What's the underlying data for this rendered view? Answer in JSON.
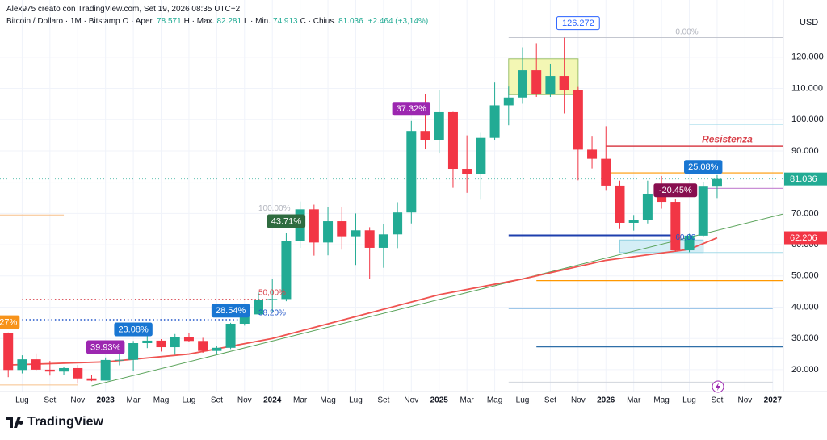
{
  "header": {
    "credit": "Alex975 creato con TradingView.com, Set 19, 2026 08:35 UTC+2",
    "symbol": "Bitcoin / Dollaro · 1M · Bitstamp",
    "ohlc": [
      {
        "label": "O · Aper.",
        "value": "78.571"
      },
      {
        "label": "H · Max.",
        "value": "82.281"
      },
      {
        "label": "L · Min.",
        "value": "74.913"
      },
      {
        "label": "C · Chius.",
        "value": "81.036"
      },
      {
        "label": "",
        "value": "+2.464 (+3,14%)"
      }
    ],
    "currency": "USD"
  },
  "footer": {
    "brand": "TradingView"
  },
  "chart_data": {
    "type": "candlestick",
    "up_color": "#22ab94",
    "down_color": "#f23645",
    "grid": true,
    "x": [
      "2022-06",
      "2022-07",
      "2022-08",
      "2022-09",
      "2022-10",
      "2022-11",
      "2022-12",
      "2023-01",
      "2023-02",
      "2023-03",
      "2023-04",
      "2023-05",
      "2023-06",
      "2023-07",
      "2023-08",
      "2023-09",
      "2023-10",
      "2023-11",
      "2023-12",
      "2024-01",
      "2024-02",
      "2024-03",
      "2024-04",
      "2024-05",
      "2024-06",
      "2024-07",
      "2024-08",
      "2024-09",
      "2024-10",
      "2024-11",
      "2024-12",
      "2025-01",
      "2025-02",
      "2025-03",
      "2025-04",
      "2025-05",
      "2025-06",
      "2025-07",
      "2025-08",
      "2025-09",
      "2025-10",
      "2025-11",
      "2025-12",
      "2026-01",
      "2026-02",
      "2026-03",
      "2026-04",
      "2026-05",
      "2026-06",
      "2026-07",
      "2026-08",
      "2026-09"
    ],
    "open": [
      31800,
      19900,
      23300,
      20000,
      19400,
      20500,
      17200,
      16500,
      23100,
      23150,
      28500,
      29300,
      27200,
      30500,
      29200,
      26000,
      27000,
      34700,
      37700,
      42300,
      42600,
      61200,
      71300,
      60700,
      67500,
      62700,
      64600,
      59000,
      63300,
      70300,
      96400,
      93400,
      102400,
      84300,
      82500,
      94200,
      104600,
      107100,
      115800,
      108200,
      114000,
      109500,
      90400,
      87500,
      78900,
      67000,
      68000,
      76300,
      73700,
      58200,
      62900,
      78571
    ],
    "high": [
      31900,
      24600,
      25200,
      22800,
      21000,
      21500,
      18400,
      23900,
      25200,
      29200,
      31000,
      29800,
      31400,
      31800,
      30200,
      27500,
      35000,
      38400,
      44700,
      48900,
      63900,
      73800,
      72800,
      72000,
      72000,
      70000,
      65600,
      66500,
      73600,
      99600,
      108300,
      109400,
      102500,
      95000,
      95800,
      111900,
      110600,
      123200,
      124500,
      117900,
      126272,
      110500,
      94600,
      97900,
      80500,
      69500,
      80500,
      82000,
      74500,
      63500,
      80000,
      82281
    ],
    "low": [
      17600,
      18800,
      19600,
      18100,
      18200,
      15500,
      16300,
      16500,
      21400,
      19600,
      26900,
      25800,
      24800,
      28900,
      25400,
      24900,
      26600,
      34100,
      37600,
      38500,
      41900,
      59000,
      56500,
      56600,
      58400,
      53500,
      49000,
      52600,
      58900,
      66800,
      90500,
      89200,
      78200,
      76600,
      74400,
      93400,
      98200,
      105100,
      107300,
      107300,
      102000,
      80600,
      84400,
      77500,
      65000,
      64500,
      66800,
      71500,
      57800,
      57600,
      62500,
      74913
    ],
    "close": [
      19900,
      23300,
      20000,
      19400,
      20500,
      17200,
      16500,
      23100,
      23150,
      28500,
      29300,
      27200,
      30500,
      29200,
      26000,
      27000,
      34700,
      37700,
      42300,
      42600,
      61200,
      71300,
      60700,
      67500,
      62700,
      64600,
      59000,
      63300,
      70300,
      96400,
      93400,
      102400,
      84300,
      82500,
      94200,
      104600,
      107100,
      115800,
      108200,
      114000,
      109500,
      90400,
      87500,
      78900,
      67000,
      68000,
      76300,
      73700,
      58200,
      62900,
      78571,
      81036
    ],
    "xlim": [
      "2022-05",
      "2027-02"
    ],
    "xticks": [
      {
        "value": "2022-07",
        "label": "Lug"
      },
      {
        "value": "2022-09",
        "label": "Set"
      },
      {
        "value": "2022-11",
        "label": "Nov"
      },
      {
        "value": "2023-01",
        "label": "2023"
      },
      {
        "value": "2023-03",
        "label": "Mar"
      },
      {
        "value": "2023-05",
        "label": "Mag"
      },
      {
        "value": "2023-07",
        "label": "Lug"
      },
      {
        "value": "2023-09",
        "label": "Set"
      },
      {
        "value": "2023-11",
        "label": "Nov"
      },
      {
        "value": "2024-01",
        "label": "2024"
      },
      {
        "value": "2024-03",
        "label": "Mar"
      },
      {
        "value": "2024-05",
        "label": "Mag"
      },
      {
        "value": "2024-07",
        "label": "Lug"
      },
      {
        "value": "2024-09",
        "label": "Set"
      },
      {
        "value": "2024-11",
        "label": "Nov"
      },
      {
        "value": "2025-01",
        "label": "2025"
      },
      {
        "value": "2025-03",
        "label": "Mar"
      },
      {
        "value": "2025-05",
        "label": "Mag"
      },
      {
        "value": "2025-07",
        "label": "Lug"
      },
      {
        "value": "2025-09",
        "label": "Set"
      },
      {
        "value": "2025-11",
        "label": "Nov"
      },
      {
        "value": "2026-01",
        "label": "2026"
      },
      {
        "value": "2026-03",
        "label": "Mar"
      },
      {
        "value": "2026-05",
        "label": "Mag"
      },
      {
        "value": "2026-07",
        "label": "Lug"
      },
      {
        "value": "2026-09",
        "label": "Set"
      },
      {
        "value": "2026-11",
        "label": "Nov"
      },
      {
        "value": "2027-01",
        "label": "2027"
      }
    ],
    "ylim": [
      13000,
      138300
    ],
    "yticks": [
      {
        "value": 20000,
        "label": "20.000"
      },
      {
        "value": 30000,
        "label": "30.000"
      },
      {
        "value": 40000,
        "label": "40.000"
      },
      {
        "value": 50000,
        "label": "50.000"
      },
      {
        "value": 60000,
        "label": "60.000"
      },
      {
        "value": 70000,
        "label": "70.000"
      },
      {
        "value": 80000,
        "label": "80.000"
      },
      {
        "value": 90000,
        "label": "90.000"
      },
      {
        "value": 100000,
        "label": "100.000"
      },
      {
        "value": 110000,
        "label": "110.000"
      },
      {
        "value": 120000,
        "label": "120.000"
      }
    ],
    "moving_average": {
      "color": "#ef5350",
      "x": [
        "2022-06",
        "2023-01",
        "2023-07",
        "2024-01",
        "2024-07",
        "2025-01",
        "2025-07",
        "2026-01",
        "2026-07",
        "2026-09"
      ],
      "values": [
        21500,
        22500,
        25000,
        30000,
        37000,
        44000,
        49000,
        55000,
        58500,
        62206
      ]
    },
    "trendline": {
      "color": "#5aa35a",
      "x": [
        "2022-12",
        "2027-02"
      ],
      "values": [
        14800,
        70100
      ]
    },
    "zones": [
      {
        "from": "2025-06",
        "to": "2025-11",
        "low": 108000,
        "high": 119500,
        "fill": "#f3f7b4",
        "stroke": "#9cc06c"
      },
      {
        "from": "2026-02",
        "to": "2026-08",
        "low": 57500,
        "high": 61500,
        "fill": "#d4eef6",
        "stroke": "#8fd0e0"
      }
    ],
    "levels": [
      {
        "value": 126272,
        "color": "#c3c6cf",
        "from": "2025-06",
        "to": "2027-02",
        "width": 1,
        "dash": ""
      },
      {
        "value": 98500,
        "color": "#8fd3e6",
        "from": "2026-07",
        "to": "2027-02",
        "width": 1,
        "dash": ""
      },
      {
        "value": 91500,
        "color": "#d9424b",
        "from": "2026-01",
        "to": "2027-02",
        "width": 1.5,
        "dash": ""
      },
      {
        "value": 83000,
        "color": "#ff9800",
        "from": "2026-01",
        "to": "2027-02",
        "width": 1.2,
        "dash": ""
      },
      {
        "value": 78000,
        "color": "#c98fd6",
        "from": "2026-08",
        "to": "2027-02",
        "width": 1.2,
        "dash": ""
      },
      {
        "value": 63000,
        "color": "#1e3fae",
        "from": "2025-06",
        "to": "2026-06",
        "width": 2,
        "dash": ""
      },
      {
        "value": 57500,
        "color": "#a5dbe8",
        "from": "2026-02",
        "to": "2027-02",
        "width": 1,
        "dash": ""
      },
      {
        "value": 48500,
        "color": "#ff9800",
        "from": "2025-08",
        "to": "2027-02",
        "width": 1.2,
        "dash": ""
      },
      {
        "value": 39500,
        "color": "#90bfe6",
        "from": "2025-06",
        "to": "2027-01",
        "width": 1,
        "dash": ""
      },
      {
        "value": 27300,
        "color": "#2f6fa8",
        "from": "2025-08",
        "to": "2027-02",
        "width": 1.2,
        "dash": ""
      },
      {
        "value": 16000,
        "color": "#d1d4dc",
        "from": "2025-06",
        "to": "2027-01",
        "width": 1,
        "dash": ""
      },
      {
        "value": 42500,
        "color": "#d9424b",
        "from": "2022-07",
        "to": "2024-01",
        "width": 1.5,
        "dash": "1.5 3"
      },
      {
        "value": 36000,
        "color": "#1e53c8",
        "from": "2022-07",
        "to": "2023-11",
        "width": 1.5,
        "dash": "1.5 3"
      },
      {
        "value": 69500,
        "color": "#f7c08a",
        "from": "2022-05",
        "to": "2022-10",
        "width": 1,
        "dash": ""
      },
      {
        "value": 15100,
        "color": "#f7c08a",
        "from": "2022-05",
        "to": "2022-11",
        "width": 1,
        "dash": ""
      }
    ],
    "annotations": [
      {
        "text": "Resistenza",
        "x": "2026-05",
        "price": 93500,
        "color": "#d9424b",
        "style": "title"
      },
      {
        "text": "0.00%",
        "x": "2026-06",
        "price": 128000,
        "color": "#b2b5be",
        "style": "plain"
      },
      {
        "text": "100.00%",
        "x": "2023-12",
        "price": 71600,
        "color": "#b2b5be",
        "style": "plain"
      },
      {
        "text": "50,00%",
        "x": "2023-12",
        "price": 44500,
        "color": "#d9424b",
        "style": "plain"
      },
      {
        "text": "38,20%",
        "x": "2023-12",
        "price": 38100,
        "color": "#1e53c8",
        "style": "plain"
      },
      {
        "text": "60,00",
        "x": "2026-06",
        "price": 62300,
        "color": "#1e53c8",
        "style": "plain"
      },
      {
        "text": "126.272",
        "x": "2025-11",
        "price": 130900,
        "color": "#2962ff",
        "style": "outline"
      },
      {
        "text": "27%",
        "x": "2022-06",
        "price": 35200,
        "color": "#f7931a",
        "style": "badge"
      },
      {
        "text": "39.93%",
        "x": "2023-01",
        "price": 27200,
        "color": "#9c27b0",
        "style": "badge"
      },
      {
        "text": "23.08%",
        "x": "2023-03",
        "price": 32900,
        "color": "#1976d2",
        "style": "badge"
      },
      {
        "text": "28.54%",
        "x": "2023-10",
        "price": 38900,
        "color": "#1976d2",
        "style": "badge"
      },
      {
        "text": "43.71%",
        "x": "2024-02",
        "price": 67500,
        "color": "#2e6b3f",
        "style": "badge"
      },
      {
        "text": "37.32%",
        "x": "2024-11",
        "price": 103500,
        "color": "#9c27b0",
        "style": "badge"
      },
      {
        "text": "25.08%",
        "x": "2026-08",
        "price": 84900,
        "color": "#1976d2",
        "style": "badge"
      },
      {
        "text": "-20.45%",
        "x": "2026-06",
        "price": 77400,
        "color": "#880e4f",
        "style": "badge"
      }
    ],
    "price_labels": [
      {
        "value": 81036,
        "label": "81.036",
        "color": "#22ab94"
      },
      {
        "value": 62206,
        "label": "62.206",
        "color": "#f23645"
      }
    ]
  }
}
